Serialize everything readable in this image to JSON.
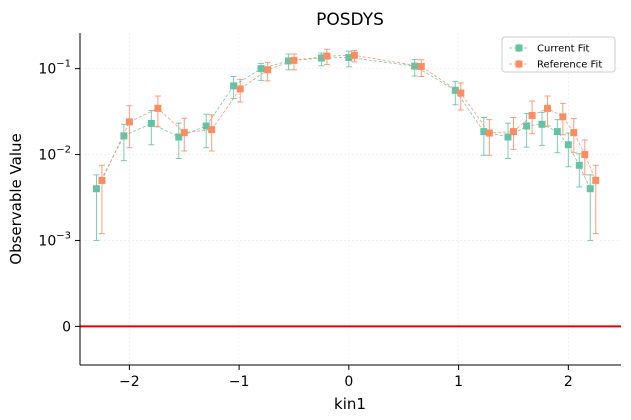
{
  "chart_data": {
    "type": "scatter",
    "title": "POSDYS",
    "xlabel": "kin1",
    "ylabel": "Observable Value",
    "x_ticks": [
      -2,
      -1,
      0,
      1,
      2
    ],
    "x_tick_labels": [
      "−2",
      "−1",
      "0",
      "1",
      "2"
    ],
    "xlim": [
      -2.45,
      2.48
    ],
    "y_scale": "symlog",
    "y_linthresh": 0.001,
    "y_ticks": [
      0,
      0.001,
      0.01,
      0.1
    ],
    "y_tick_labels": [
      {
        "base": "0",
        "exp": ""
      },
      {
        "base": "10",
        "exp": "−3"
      },
      {
        "base": "10",
        "exp": "−2"
      },
      {
        "base": "10",
        "exp": "−1"
      }
    ],
    "ylim_top": 0.26,
    "zero_line_color": "#e00000",
    "grid": true,
    "legend_position": "top-right",
    "series": [
      {
        "name": "Current Fit",
        "color": "#66c2a5",
        "marker": "square",
        "x": [
          -2.3,
          -2.05,
          -1.8,
          -1.55,
          -1.3,
          -1.05,
          -0.8,
          -0.55,
          -0.25,
          0.0,
          0.6,
          0.97,
          1.23,
          1.45,
          1.62,
          1.76,
          1.9,
          2.0,
          2.1,
          2.2
        ],
        "y": [
          0.004,
          0.0165,
          0.023,
          0.016,
          0.0215,
          0.063,
          0.1,
          0.123,
          0.133,
          0.135,
          0.107,
          0.056,
          0.0185,
          0.016,
          0.0215,
          0.0225,
          0.0185,
          0.013,
          0.0075,
          0.004
        ],
        "y_low": [
          0.001,
          0.0085,
          0.013,
          0.009,
          0.012,
          0.045,
          0.073,
          0.097,
          0.108,
          0.105,
          0.082,
          0.038,
          0.0098,
          0.009,
          0.0122,
          0.0128,
          0.0105,
          0.0072,
          0.0042,
          0.001
        ],
        "y_high": [
          0.0058,
          0.0225,
          0.0325,
          0.0232,
          0.0295,
          0.081,
          0.115,
          0.148,
          0.152,
          0.16,
          0.128,
          0.071,
          0.027,
          0.0232,
          0.03,
          0.031,
          0.0255,
          0.0178,
          0.0102,
          0.0058
        ]
      },
      {
        "name": "Reference Fit",
        "color": "#fc8d62",
        "marker": "square",
        "x": [
          -2.25,
          -2.0,
          -1.74,
          -1.5,
          -1.25,
          -0.99,
          -0.74,
          -0.5,
          -0.2,
          0.05,
          0.66,
          1.02,
          1.28,
          1.5,
          1.67,
          1.81,
          1.95,
          2.05,
          2.15,
          2.25
        ],
        "y": [
          0.005,
          0.024,
          0.0345,
          0.018,
          0.0195,
          0.058,
          0.097,
          0.125,
          0.14,
          0.143,
          0.106,
          0.052,
          0.0178,
          0.0185,
          0.0285,
          0.0345,
          0.0275,
          0.018,
          0.01,
          0.005
        ],
        "y_low": [
          0.0012,
          0.012,
          0.021,
          0.011,
          0.011,
          0.041,
          0.072,
          0.097,
          0.112,
          0.12,
          0.081,
          0.033,
          0.0098,
          0.0115,
          0.0175,
          0.0215,
          0.017,
          0.0105,
          0.0058,
          0.0012
        ],
        "y_high": [
          0.0075,
          0.037,
          0.048,
          0.0265,
          0.029,
          0.075,
          0.118,
          0.148,
          0.168,
          0.163,
          0.127,
          0.068,
          0.0255,
          0.027,
          0.042,
          0.048,
          0.0395,
          0.0262,
          0.0148,
          0.0075
        ]
      }
    ]
  }
}
